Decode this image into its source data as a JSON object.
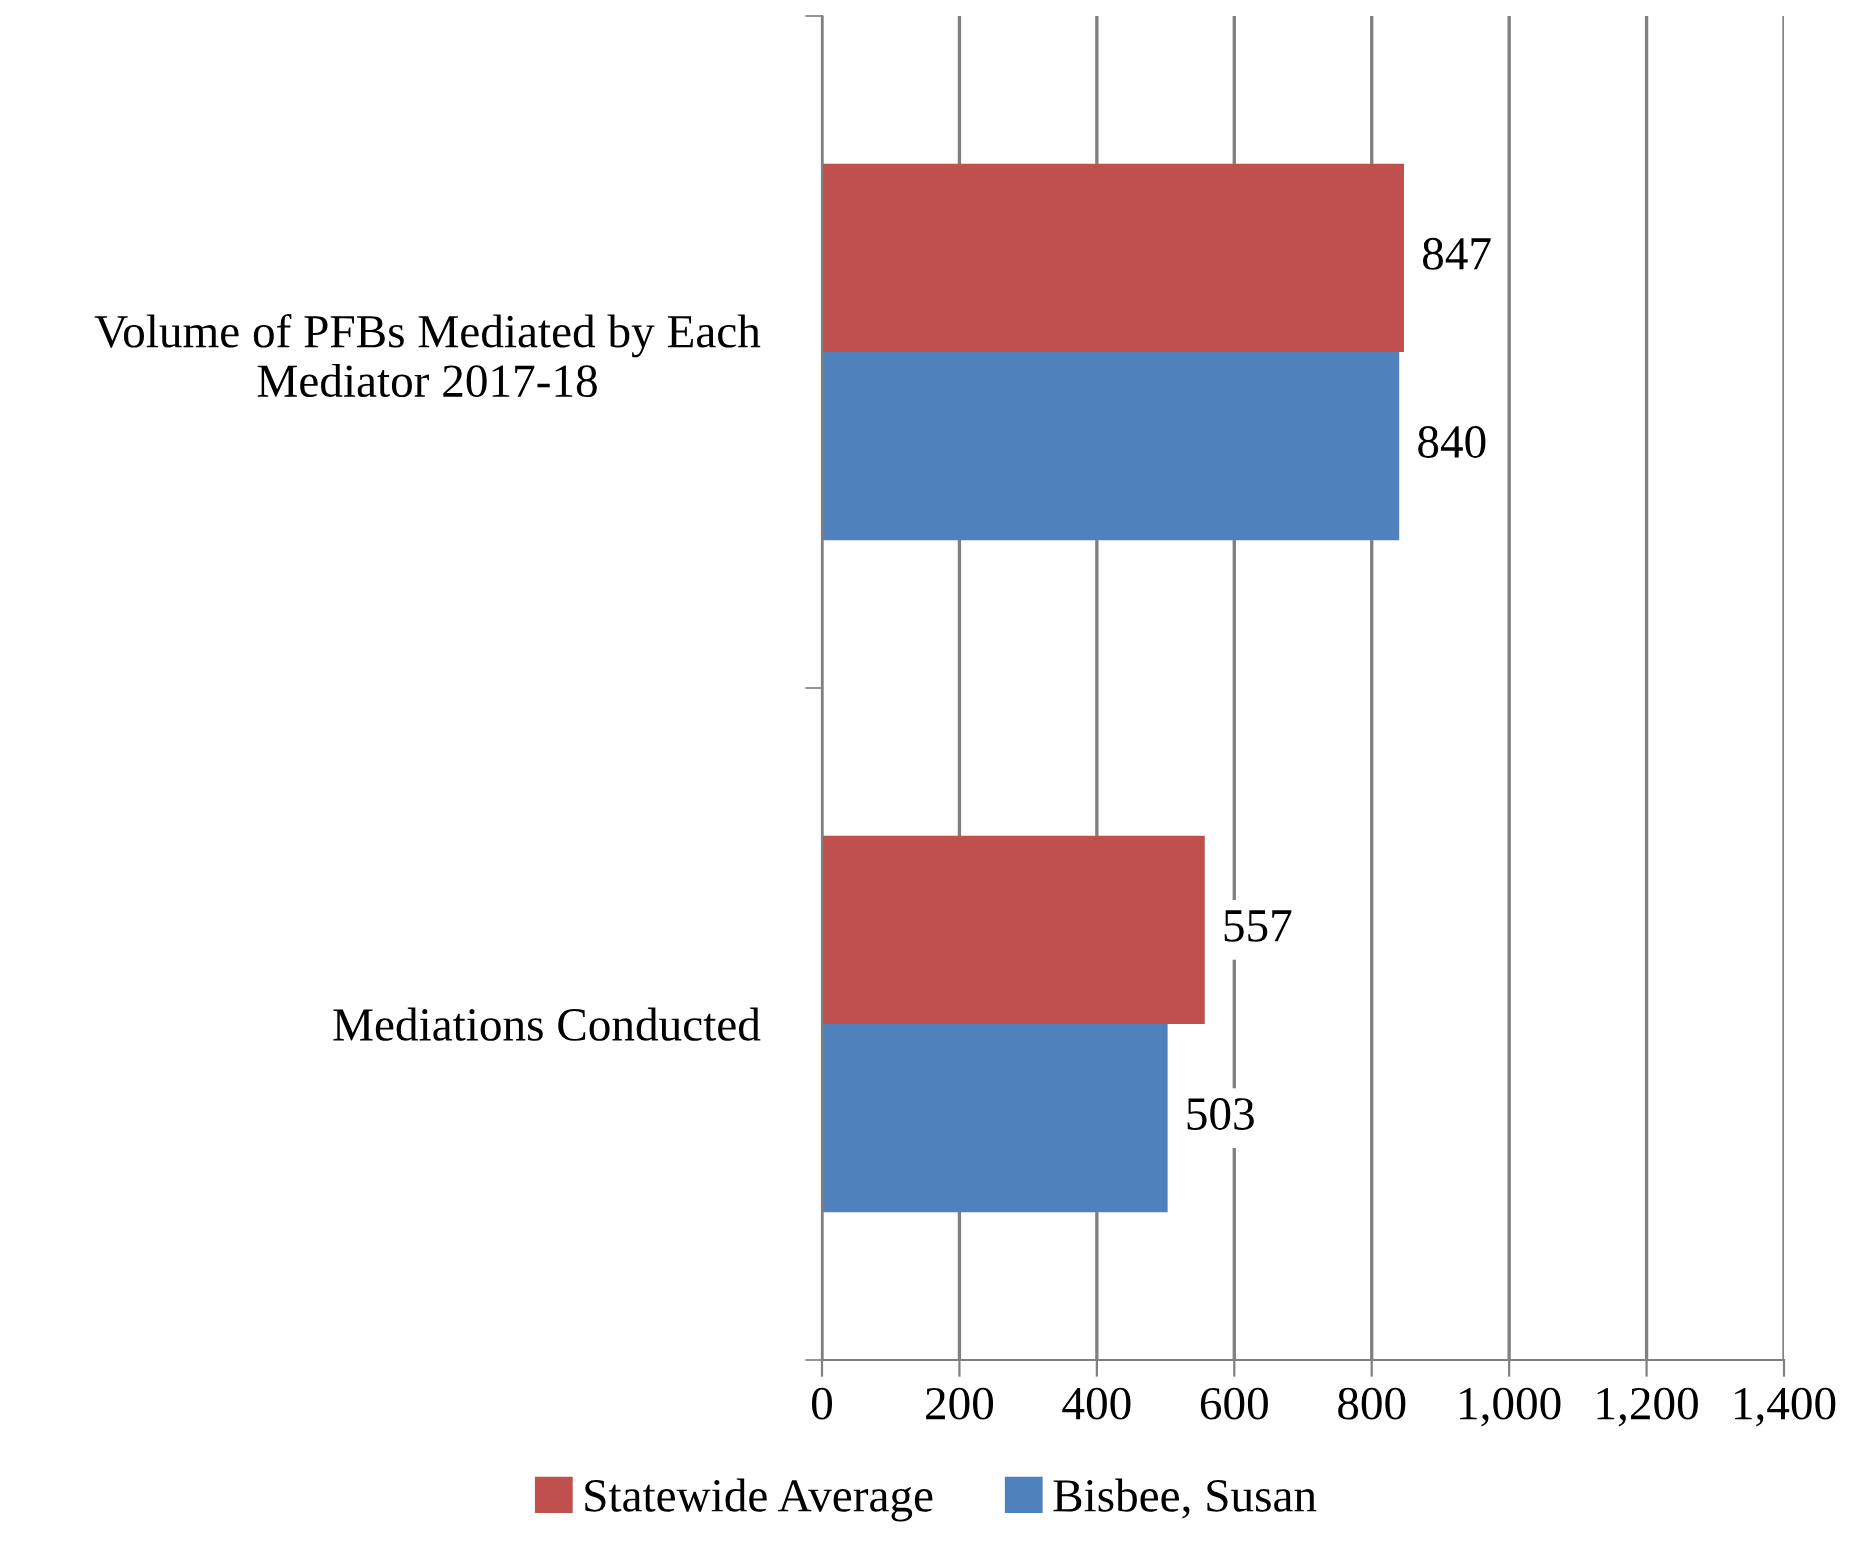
{
  "chart_data": {
    "type": "bar",
    "orientation": "horizontal",
    "categories": [
      "Volume of PFBs Mediated by Each\nMediator 2017-18",
      "Mediations Conducted"
    ],
    "series": [
      {
        "name": "Statewide Average",
        "color": "#c0504d",
        "values": [
          847,
          557
        ]
      },
      {
        "name": "Bisbee, Susan",
        "color": "#4f81bd",
        "values": [
          840,
          503
        ]
      }
    ],
    "xlim": [
      0,
      1400
    ],
    "xticks": [
      0,
      200,
      400,
      600,
      800,
      {
        "value": 1000,
        "label": "1,000"
      },
      {
        "value": 1200,
        "label": "1,200"
      },
      {
        "value": 1400,
        "label": "1,400"
      }
    ],
    "grid": "x",
    "legend": "bottom",
    "data_labels": true
  }
}
